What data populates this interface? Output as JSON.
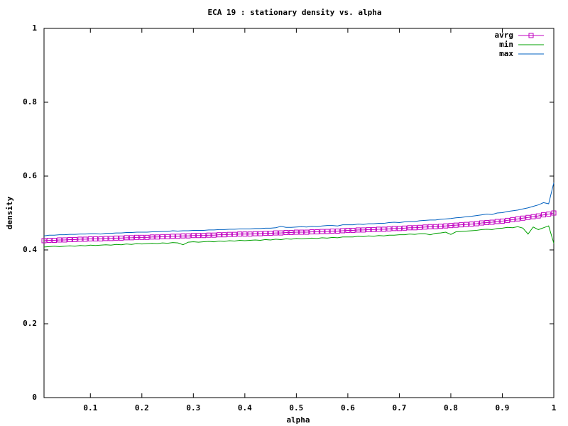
{
  "chart_data": {
    "type": "line",
    "title": "ECA 19 : stationary density vs. alpha",
    "x_label": "alpha",
    "y_label": "density",
    "x": [
      0.01,
      0.02,
      0.03,
      0.04,
      0.05,
      0.06,
      0.07,
      0.08,
      0.09,
      0.1,
      0.11,
      0.12,
      0.13,
      0.14,
      0.15,
      0.16,
      0.17,
      0.18,
      0.19,
      0.2,
      0.21,
      0.22,
      0.23,
      0.24,
      0.25,
      0.26,
      0.27,
      0.28,
      0.29,
      0.3,
      0.31,
      0.32,
      0.33,
      0.34,
      0.35,
      0.36,
      0.37,
      0.38,
      0.39,
      0.4,
      0.41,
      0.42,
      0.43,
      0.44,
      0.45,
      0.46,
      0.47,
      0.48,
      0.49,
      0.5,
      0.51,
      0.52,
      0.53,
      0.54,
      0.55,
      0.56,
      0.57,
      0.58,
      0.59,
      0.6,
      0.61,
      0.62,
      0.63,
      0.64,
      0.65,
      0.66,
      0.67,
      0.68,
      0.69,
      0.7,
      0.71,
      0.72,
      0.73,
      0.74,
      0.75,
      0.76,
      0.77,
      0.78,
      0.79,
      0.8,
      0.81,
      0.82,
      0.83,
      0.84,
      0.85,
      0.86,
      0.87,
      0.88,
      0.89,
      0.9,
      0.91,
      0.92,
      0.93,
      0.94,
      0.95,
      0.96,
      0.97,
      0.98,
      0.99,
      1
    ],
    "series": [
      {
        "name": "avrg",
        "color": "#c000c0",
        "marker": "square",
        "values": [
          0.425,
          0.426,
          0.426,
          0.427,
          0.427,
          0.428,
          0.428,
          0.429,
          0.429,
          0.43,
          0.43,
          0.43,
          0.431,
          0.431,
          0.432,
          0.432,
          0.433,
          0.433,
          0.434,
          0.434,
          0.434,
          0.435,
          0.435,
          0.436,
          0.436,
          0.437,
          0.437,
          0.438,
          0.438,
          0.439,
          0.439,
          0.439,
          0.44,
          0.44,
          0.441,
          0.441,
          0.442,
          0.442,
          0.443,
          0.443,
          0.443,
          0.444,
          0.444,
          0.445,
          0.445,
          0.446,
          0.446,
          0.447,
          0.447,
          0.448,
          0.448,
          0.448,
          0.449,
          0.449,
          0.45,
          0.45,
          0.451,
          0.451,
          0.452,
          0.453,
          0.453,
          0.454,
          0.454,
          0.455,
          0.455,
          0.456,
          0.456,
          0.457,
          0.458,
          0.458,
          0.459,
          0.46,
          0.46,
          0.461,
          0.462,
          0.463,
          0.463,
          0.464,
          0.465,
          0.466,
          0.467,
          0.468,
          0.469,
          0.47,
          0.471,
          0.473,
          0.474,
          0.475,
          0.477,
          0.478,
          0.48,
          0.482,
          0.484,
          0.486,
          0.488,
          0.49,
          0.492,
          0.495,
          0.497,
          0.5
        ]
      },
      {
        "name": "min",
        "color": "#00a000",
        "values": [
          0.408,
          0.409,
          0.41,
          0.409,
          0.41,
          0.411,
          0.41,
          0.412,
          0.411,
          0.413,
          0.412,
          0.413,
          0.414,
          0.413,
          0.415,
          0.414,
          0.416,
          0.415,
          0.417,
          0.416,
          0.417,
          0.418,
          0.417,
          0.419,
          0.418,
          0.42,
          0.419,
          0.414,
          0.421,
          0.422,
          0.421,
          0.422,
          0.423,
          0.422,
          0.424,
          0.423,
          0.425,
          0.424,
          0.426,
          0.425,
          0.426,
          0.427,
          0.426,
          0.428,
          0.427,
          0.429,
          0.428,
          0.43,
          0.429,
          0.431,
          0.43,
          0.431,
          0.432,
          0.431,
          0.433,
          0.432,
          0.434,
          0.433,
          0.435,
          0.435,
          0.435,
          0.437,
          0.436,
          0.438,
          0.437,
          0.439,
          0.438,
          0.44,
          0.44,
          0.441,
          0.441,
          0.443,
          0.442,
          0.444,
          0.444,
          0.441,
          0.445,
          0.446,
          0.448,
          0.442,
          0.449,
          0.45,
          0.451,
          0.452,
          0.453,
          0.455,
          0.456,
          0.455,
          0.458,
          0.459,
          0.461,
          0.46,
          0.463,
          0.459,
          0.443,
          0.462,
          0.455,
          0.46,
          0.465,
          0.418
        ]
      },
      {
        "name": "max",
        "color": "#0060c0",
        "values": [
          0.438,
          0.44,
          0.44,
          0.441,
          0.441,
          0.442,
          0.442,
          0.443,
          0.443,
          0.444,
          0.444,
          0.443,
          0.445,
          0.445,
          0.446,
          0.446,
          0.447,
          0.447,
          0.448,
          0.448,
          0.448,
          0.449,
          0.449,
          0.45,
          0.45,
          0.452,
          0.451,
          0.452,
          0.452,
          0.453,
          0.453,
          0.453,
          0.454,
          0.454,
          0.455,
          0.455,
          0.456,
          0.456,
          0.457,
          0.457,
          0.457,
          0.458,
          0.458,
          0.459,
          0.459,
          0.46,
          0.464,
          0.461,
          0.461,
          0.462,
          0.463,
          0.462,
          0.464,
          0.463,
          0.465,
          0.466,
          0.466,
          0.465,
          0.468,
          0.468,
          0.468,
          0.47,
          0.469,
          0.471,
          0.471,
          0.472,
          0.472,
          0.474,
          0.475,
          0.474,
          0.476,
          0.477,
          0.477,
          0.479,
          0.48,
          0.481,
          0.481,
          0.483,
          0.484,
          0.485,
          0.487,
          0.488,
          0.49,
          0.491,
          0.493,
          0.495,
          0.497,
          0.496,
          0.5,
          0.501,
          0.504,
          0.506,
          0.508,
          0.511,
          0.514,
          0.518,
          0.522,
          0.528,
          0.525,
          0.582
        ]
      }
    ],
    "xlim": [
      0.01,
      1
    ],
    "ylim": [
      0,
      1
    ],
    "xticks": [
      0.1,
      0.2,
      0.3,
      0.4,
      0.5,
      0.6,
      0.7,
      0.8,
      0.9,
      1
    ],
    "yticks": [
      0,
      0.2,
      0.4,
      0.6,
      0.8,
      1
    ],
    "legend": "top-right"
  }
}
